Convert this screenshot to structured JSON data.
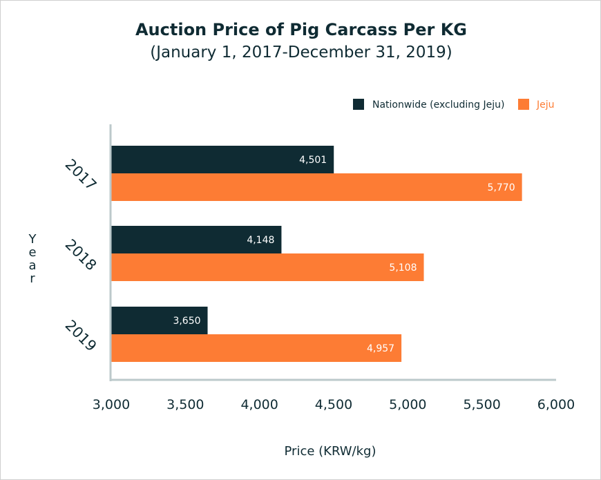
{
  "chart_data": {
    "type": "bar",
    "orientation": "horizontal",
    "title": "Auction Price of Pig Carcass Per KG",
    "subtitle": "(January 1, 2017-December 31, 2019)",
    "xlabel": "Price (KRW/kg)",
    "ylabel": "Year",
    "categories": [
      "2017",
      "2018",
      "2019"
    ],
    "xlim": [
      3000,
      6000
    ],
    "xticks": [
      3000,
      3500,
      4000,
      4500,
      5000,
      5500,
      6000
    ],
    "xtick_labels": [
      "3,000",
      "3,500",
      "4,000",
      "4,500",
      "5,000",
      "5,500",
      "6,000"
    ],
    "legend_position": "top-right",
    "grid": false,
    "series": [
      {
        "name": "Nationwide (excluding Jeju)",
        "color": "#0f2b33",
        "values": [
          4501,
          4148,
          3650
        ],
        "labels": [
          "4,501",
          "4,148",
          "3,650"
        ]
      },
      {
        "name": "Jeju",
        "color": "#fd7c34",
        "values": [
          5770,
          5108,
          4957
        ],
        "labels": [
          "5,770",
          "5,108",
          "4,957"
        ]
      }
    ]
  }
}
